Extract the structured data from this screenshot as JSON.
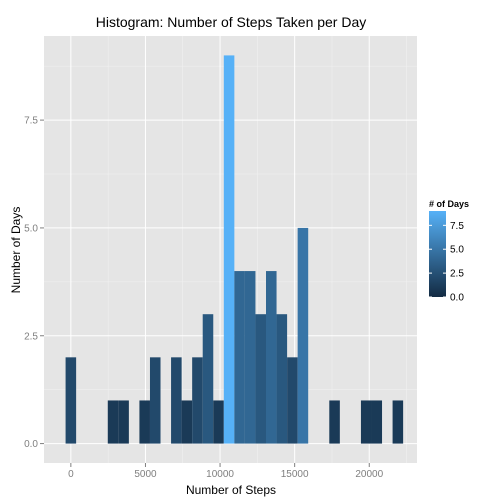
{
  "chart_data": {
    "type": "bar",
    "title": "Histogram: Number of Steps Taken per Day",
    "xlabel": "Number of Steps",
    "ylabel": "Number of Days",
    "xlim": [
      -1800,
      23200
    ],
    "ylim": [
      -0.45,
      9.45
    ],
    "x_ticks": [
      0,
      5000,
      10000,
      15000,
      20000
    ],
    "x_tick_labels": [
      "0",
      "5000",
      "10000",
      "15000",
      "20000"
    ],
    "y_ticks": [
      0,
      2.5,
      5,
      7.5
    ],
    "y_tick_labels": [
      "0.0",
      "2.5",
      "5.0",
      "7.5"
    ],
    "bin_width": 707,
    "bins": [
      {
        "x": 0,
        "count": 2
      },
      {
        "x": 707,
        "count": 0
      },
      {
        "x": 1414,
        "count": 0
      },
      {
        "x": 2121,
        "count": 0
      },
      {
        "x": 2828,
        "count": 1
      },
      {
        "x": 3535,
        "count": 1
      },
      {
        "x": 4242,
        "count": 0
      },
      {
        "x": 4949,
        "count": 1
      },
      {
        "x": 5656,
        "count": 2
      },
      {
        "x": 6363,
        "count": 0
      },
      {
        "x": 7070,
        "count": 2
      },
      {
        "x": 7777,
        "count": 1
      },
      {
        "x": 8484,
        "count": 2
      },
      {
        "x": 9191,
        "count": 3
      },
      {
        "x": 9898,
        "count": 1
      },
      {
        "x": 10605,
        "count": 9
      },
      {
        "x": 11312,
        "count": 4
      },
      {
        "x": 12019,
        "count": 4
      },
      {
        "x": 12726,
        "count": 3
      },
      {
        "x": 13433,
        "count": 4
      },
      {
        "x": 14140,
        "count": 3
      },
      {
        "x": 14847,
        "count": 2
      },
      {
        "x": 15554,
        "count": 5
      },
      {
        "x": 16261,
        "count": 0
      },
      {
        "x": 16968,
        "count": 0
      },
      {
        "x": 17675,
        "count": 1
      },
      {
        "x": 18382,
        "count": 0
      },
      {
        "x": 19089,
        "count": 0
      },
      {
        "x": 19796,
        "count": 1
      },
      {
        "x": 20503,
        "count": 1
      },
      {
        "x": 21210,
        "count": 0
      },
      {
        "x": 21917,
        "count": 1
      }
    ],
    "fill_scale": {
      "low_color": "#132B43",
      "high_color": "#56B1F7",
      "limits": [
        0,
        9
      ]
    },
    "legend": {
      "title": "# of Days",
      "position": "right",
      "ticks": [
        0,
        2.5,
        5,
        7.5
      ],
      "tick_labels": [
        "0.0",
        "2.5",
        "5.0",
        "7.5"
      ]
    },
    "grid": true,
    "panel_background": "#E5E5E5",
    "grid_major_color": "#FFFFFF",
    "grid_minor_color": "#F2F2F2"
  }
}
